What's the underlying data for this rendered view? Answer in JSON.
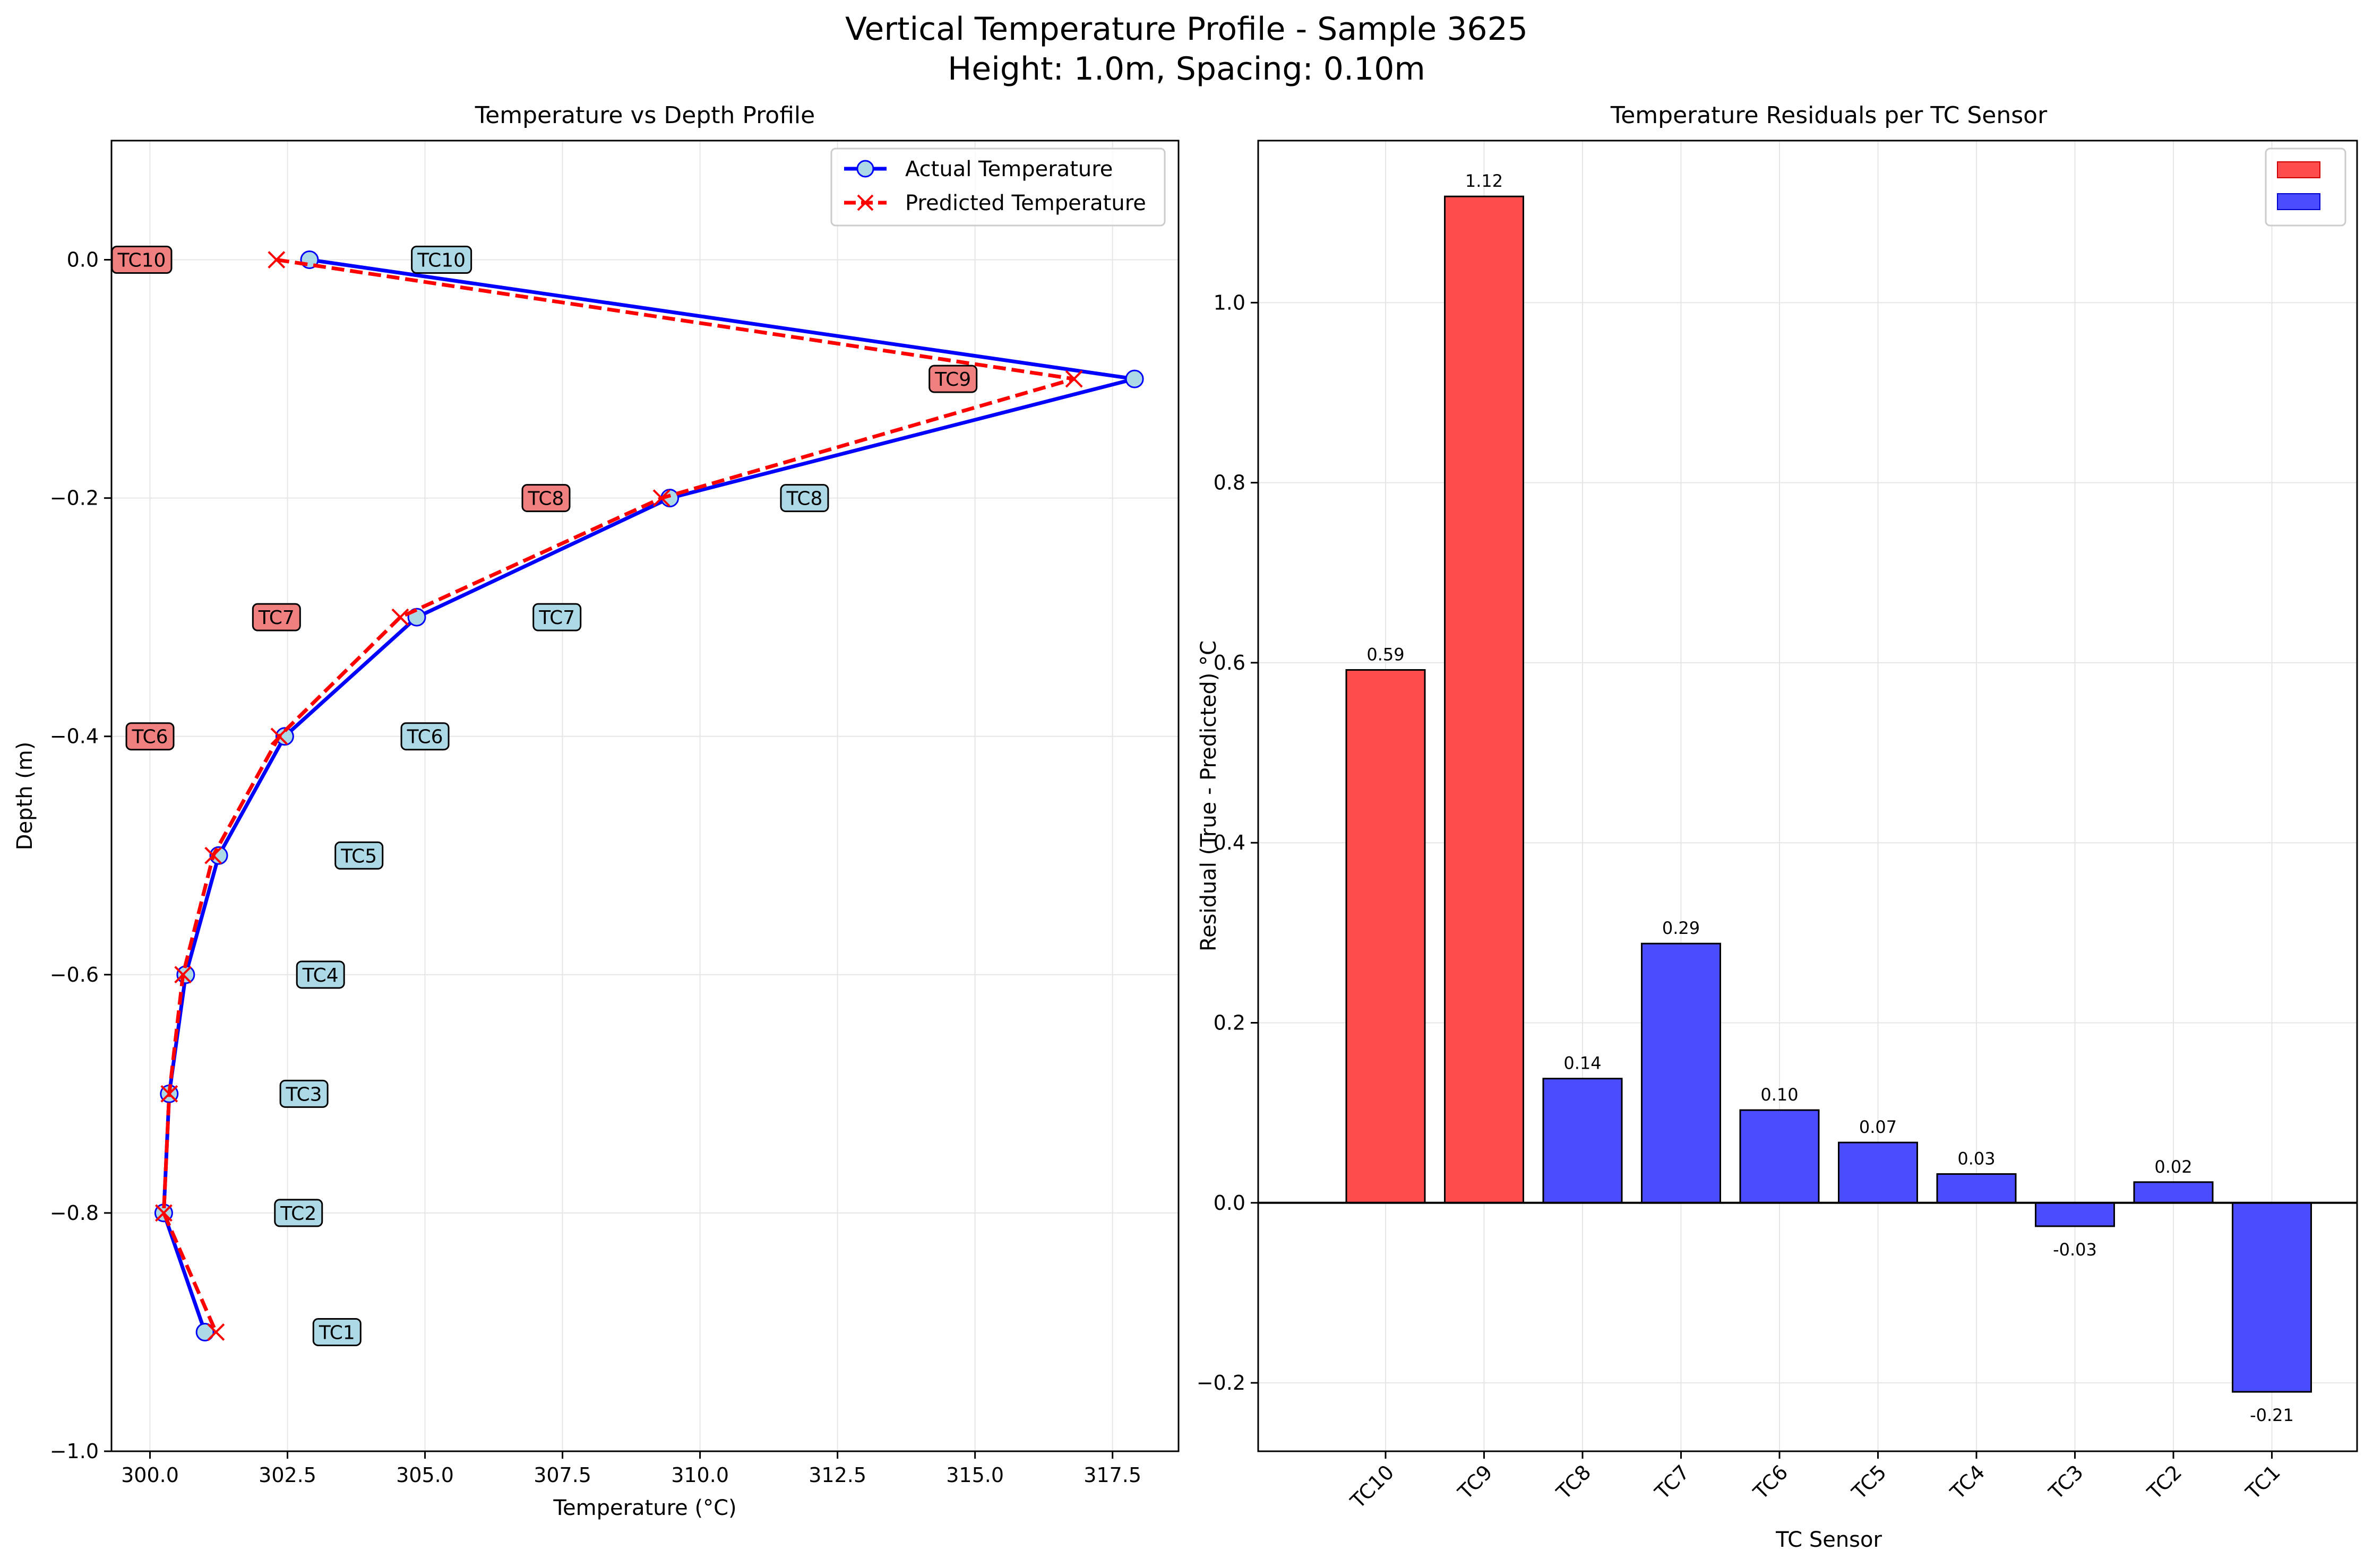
{
  "figure": {
    "title_line1": "Vertical Temperature Profile - Sample 3625",
    "title_line2": "Height: 1.0m, Spacing: 0.10m"
  },
  "colors": {
    "actual": "#0000ff",
    "actual_marker_fill": "#add8e6",
    "predicted": "#ff0000",
    "bar_positive_red": "#ff4c4c",
    "bar_blue": "#4c4cff",
    "label_actual_bg": "#add8e6",
    "label_pred_bg": "#f08080",
    "grid": "#e6e6e6"
  },
  "chart_data": [
    {
      "type": "line",
      "title": "Temperature vs Depth Profile",
      "xlabel": "Temperature (°C)",
      "ylabel": "Depth (m)",
      "xlim": [
        299.3,
        318.7
      ],
      "ylim": [
        -1.0,
        0.1
      ],
      "xticks": [
        "300.0",
        "302.5",
        "305.0",
        "307.5",
        "310.0",
        "312.5",
        "315.0",
        "317.5"
      ],
      "xtick_values": [
        300.0,
        302.5,
        305.0,
        307.5,
        310.0,
        312.5,
        315.0,
        317.5
      ],
      "yticks": [
        "0.0",
        "−0.2",
        "−0.4",
        "−0.6",
        "−0.8",
        "−1.0"
      ],
      "ytick_values": [
        0.0,
        -0.2,
        -0.4,
        -0.6,
        -0.8,
        -1.0
      ],
      "grid": true,
      "legend_position": "upper-right",
      "sensors": [
        "TC10",
        "TC9",
        "TC8",
        "TC7",
        "TC6",
        "TC5",
        "TC4",
        "TC3",
        "TC2",
        "TC1"
      ],
      "depth": [
        0.0,
        -0.1,
        -0.2,
        -0.3,
        -0.4,
        -0.5,
        -0.6,
        -0.7,
        -0.8,
        -0.9
      ],
      "series": [
        {
          "name": "Actual Temperature",
          "values": [
            302.9,
            317.9,
            309.45,
            304.85,
            302.45,
            301.25,
            300.65,
            300.35,
            300.25,
            301.0
          ]
        },
        {
          "name": "Predicted Temperature",
          "values": [
            302.3,
            316.8,
            309.3,
            304.55,
            302.35,
            301.15,
            300.6,
            300.35,
            300.25,
            301.2
          ]
        }
      ],
      "actual_labels": [
        {
          "text": "TC10",
          "t": 305.3,
          "d": 0.0
        },
        {
          "text": "TC8",
          "t": 311.9,
          "d": -0.2
        },
        {
          "text": "TC7",
          "t": 307.4,
          "d": -0.3
        },
        {
          "text": "TC6",
          "t": 305.0,
          "d": -0.4
        },
        {
          "text": "TC5",
          "t": 303.8,
          "d": -0.5
        },
        {
          "text": "TC4",
          "t": 303.1,
          "d": -0.6
        },
        {
          "text": "TC3",
          "t": 302.8,
          "d": -0.7
        },
        {
          "text": "TC2",
          "t": 302.7,
          "d": -0.8
        },
        {
          "text": "TC1",
          "t": 303.4,
          "d": -0.9
        }
      ],
      "predicted_labels": [
        {
          "text": "TC10",
          "t": 299.85,
          "d": 0.0
        },
        {
          "text": "TC9",
          "t": 314.6,
          "d": -0.1
        },
        {
          "text": "TC8",
          "t": 307.2,
          "d": -0.2
        },
        {
          "text": "TC7",
          "t": 302.3,
          "d": -0.3
        },
        {
          "text": "TC6",
          "t": 300.0,
          "d": -0.4
        }
      ]
    },
    {
      "type": "bar",
      "title": "Temperature Residuals per TC Sensor",
      "xlabel": "TC Sensor",
      "ylabel": "Residual (True - Predicted) °C",
      "ylim": [
        -0.276,
        1.18
      ],
      "yticks": [
        "−0.2",
        "0.0",
        "0.2",
        "0.4",
        "0.6",
        "0.8",
        "1.0"
      ],
      "ytick_values": [
        -0.2,
        0.0,
        0.2,
        0.4,
        0.6,
        0.8,
        1.0
      ],
      "grid": true,
      "legend_position": "upper-right",
      "categories": [
        "TC10",
        "TC9",
        "TC8",
        "TC7",
        "TC6",
        "TC5",
        "TC4",
        "TC3",
        "TC2",
        "TC1"
      ],
      "values": [
        0.592,
        1.118,
        0.138,
        0.288,
        0.103,
        0.067,
        0.032,
        -0.026,
        0.023,
        -0.21
      ],
      "value_labels": [
        "0.59",
        "1.12",
        "0.14",
        "0.29",
        "0.10",
        "0.07",
        "0.03",
        "-0.03",
        "0.02",
        "-0.21"
      ],
      "bar_colors": [
        "red",
        "red",
        "blue",
        "blue",
        "blue",
        "blue",
        "blue",
        "blue",
        "blue",
        "blue"
      ]
    }
  ]
}
